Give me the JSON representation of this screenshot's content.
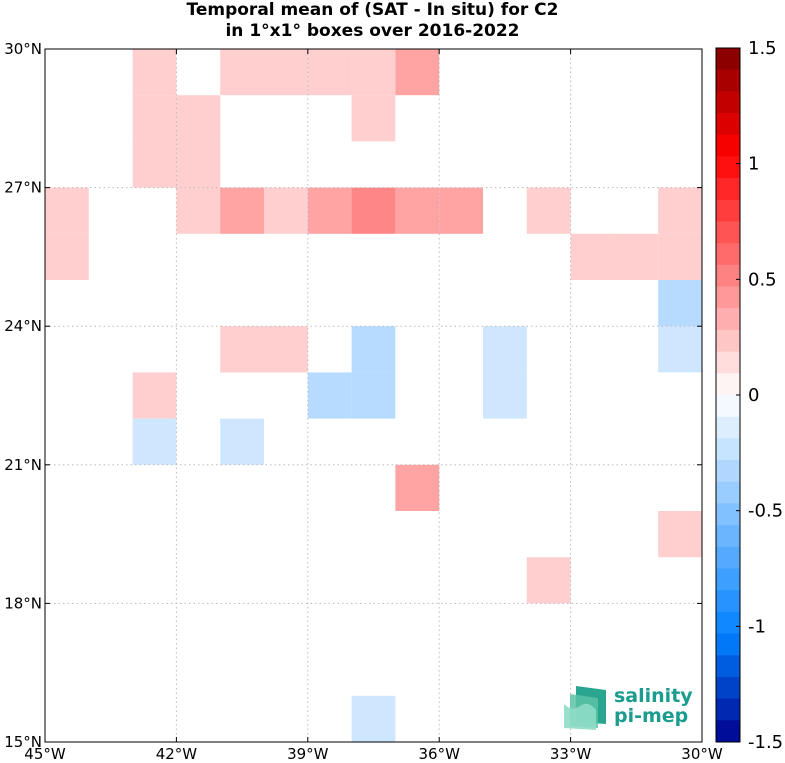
{
  "chart_data": {
    "type": "heatmap",
    "title": [
      "Temporal mean of (SAT - In situ) for C2",
      "in 1°x1° boxes over 2016-2022"
    ],
    "xlim": [
      -45,
      -30
    ],
    "ylim": [
      15,
      30
    ],
    "x_ticks": [
      {
        "value": -45,
        "label": "45°W"
      },
      {
        "value": -42,
        "label": "42°W"
      },
      {
        "value": -39,
        "label": "39°W"
      },
      {
        "value": -36,
        "label": "36°W"
      },
      {
        "value": -33,
        "label": "33°W"
      },
      {
        "value": -30,
        "label": "30°W"
      }
    ],
    "y_ticks": [
      {
        "value": 15,
        "label": "15°N"
      },
      {
        "value": 18,
        "label": "18°N"
      },
      {
        "value": 21,
        "label": "21°N"
      },
      {
        "value": 24,
        "label": "24°N"
      },
      {
        "value": 27,
        "label": "27°N"
      },
      {
        "value": 30,
        "label": "30°N"
      }
    ],
    "grid": true,
    "colorbar": {
      "range": [
        -1.5,
        1.5
      ],
      "steps": 32,
      "tick_values": [
        1.5,
        1,
        0.5,
        0,
        -0.5,
        -1,
        -1.5
      ],
      "tick_labels": [
        "1.5",
        "1",
        "0.5",
        "0",
        "-0.5",
        "-1",
        "-1.5"
      ],
      "colormap": "blue-white-red"
    },
    "cells_note": "each cell: lon/lat of lower-left corner of 1x1 box, value in colorbar units",
    "cells": [
      {
        "lon": -43,
        "lat": 29,
        "value": 0.2
      },
      {
        "lon": -41,
        "lat": 29,
        "value": 0.2
      },
      {
        "lon": -40,
        "lat": 29,
        "value": 0.2
      },
      {
        "lon": -39,
        "lat": 29,
        "value": 0.2
      },
      {
        "lon": -38,
        "lat": 29,
        "value": 0.2
      },
      {
        "lon": -37,
        "lat": 29,
        "value": 0.38
      },
      {
        "lon": -43,
        "lat": 28,
        "value": 0.2
      },
      {
        "lon": -42,
        "lat": 28,
        "value": 0.2
      },
      {
        "lon": -38,
        "lat": 28,
        "value": 0.2
      },
      {
        "lon": -43,
        "lat": 27,
        "value": 0.2
      },
      {
        "lon": -42,
        "lat": 27,
        "value": 0.2
      },
      {
        "lon": -45,
        "lat": 26,
        "value": 0.2
      },
      {
        "lon": -42,
        "lat": 26,
        "value": 0.2
      },
      {
        "lon": -41,
        "lat": 26,
        "value": 0.38
      },
      {
        "lon": -40,
        "lat": 26,
        "value": 0.2
      },
      {
        "lon": -39,
        "lat": 26,
        "value": 0.38
      },
      {
        "lon": -38,
        "lat": 26,
        "value": 0.5
      },
      {
        "lon": -37,
        "lat": 26,
        "value": 0.38
      },
      {
        "lon": -36,
        "lat": 26,
        "value": 0.38
      },
      {
        "lon": -34,
        "lat": 26,
        "value": 0.2
      },
      {
        "lon": -31,
        "lat": 26,
        "value": 0.2
      },
      {
        "lon": -45,
        "lat": 25,
        "value": 0.2
      },
      {
        "lon": -33,
        "lat": 25,
        "value": 0.2
      },
      {
        "lon": -32,
        "lat": 25,
        "value": 0.2
      },
      {
        "lon": -31,
        "lat": 25,
        "value": 0.2
      },
      {
        "lon": -31,
        "lat": 24,
        "value": -0.3
      },
      {
        "lon": -41,
        "lat": 23,
        "value": 0.2
      },
      {
        "lon": -40,
        "lat": 23,
        "value": 0.2
      },
      {
        "lon": -38,
        "lat": 23,
        "value": -0.3
      },
      {
        "lon": -35,
        "lat": 23,
        "value": -0.2
      },
      {
        "lon": -31,
        "lat": 23,
        "value": -0.2
      },
      {
        "lon": -43,
        "lat": 22,
        "value": 0.2
      },
      {
        "lon": -39,
        "lat": 22,
        "value": -0.3
      },
      {
        "lon": -38,
        "lat": 22,
        "value": -0.3
      },
      {
        "lon": -35,
        "lat": 22,
        "value": -0.2
      },
      {
        "lon": -43,
        "lat": 21,
        "value": -0.2
      },
      {
        "lon": -41,
        "lat": 21,
        "value": -0.2
      },
      {
        "lon": -37,
        "lat": 20,
        "value": 0.38
      },
      {
        "lon": -31,
        "lat": 19,
        "value": 0.2
      },
      {
        "lon": -34,
        "lat": 18,
        "value": 0.2
      },
      {
        "lon": -38,
        "lat": 15,
        "value": -0.2
      }
    ]
  },
  "logo": {
    "line1": "salinity",
    "line2": "pi-mep"
  }
}
